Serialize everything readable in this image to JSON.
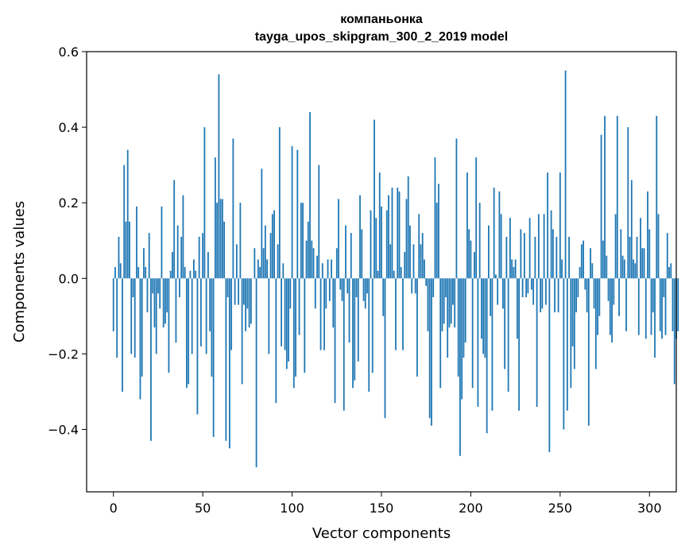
{
  "chart_data": {
    "type": "bar",
    "title": "компаньонка",
    "subtitle": "tayga_upos_skipgram_300_2_2019 model",
    "xlabel": "Vector components",
    "ylabel": "Components values",
    "xlim": [
      -15,
      315
    ],
    "ylim": [
      -0.565,
      0.6
    ],
    "xticks": [
      0,
      50,
      100,
      150,
      200,
      250,
      300
    ],
    "xtick_labels": [
      "0",
      "50",
      "100",
      "150",
      "200",
      "250",
      "300"
    ],
    "yticks": [
      -0.4,
      -0.2,
      0.0,
      0.2,
      0.4,
      0.6
    ],
    "ytick_labels": [
      "−0.4",
      "−0.2",
      "0.0",
      "0.2",
      "0.4",
      "0.6"
    ],
    "bar_color": "#1f77b4",
    "values": [
      -0.14,
      0.03,
      -0.21,
      0.11,
      0.04,
      -0.3,
      0.3,
      0.15,
      0.34,
      0.15,
      -0.2,
      -0.05,
      -0.21,
      0.19,
      0.03,
      -0.32,
      -0.26,
      0.08,
      0.03,
      -0.09,
      0.12,
      -0.43,
      -0.04,
      -0.13,
      -0.2,
      -0.04,
      -0.08,
      0.19,
      -0.13,
      -0.12,
      -0.09,
      -0.25,
      0.02,
      0.07,
      0.26,
      -0.17,
      0.14,
      -0.05,
      0.11,
      0.22,
      0.03,
      -0.29,
      -0.28,
      0.02,
      -0.2,
      0.05,
      0.02,
      -0.36,
      0.11,
      -0.18,
      0.12,
      0.4,
      -0.2,
      0.07,
      -0.14,
      -0.26,
      -0.42,
      0.32,
      0.2,
      0.54,
      0.21,
      0.21,
      0.15,
      -0.43,
      -0.05,
      -0.45,
      -0.19,
      0.37,
      -0.07,
      0.09,
      -0.07,
      0.2,
      -0.28,
      -0.07,
      -0.14,
      -0.08,
      -0.13,
      -0.12,
      0.0,
      0.08,
      -0.5,
      0.05,
      0.03,
      0.29,
      0.08,
      0.14,
      0.05,
      -0.2,
      0.12,
      0.17,
      0.18,
      -0.33,
      0.09,
      0.4,
      -0.18,
      0.04,
      -0.19,
      -0.24,
      -0.22,
      -0.08,
      0.35,
      -0.29,
      -0.26,
      0.34,
      -0.15,
      0.2,
      0.2,
      -0.25,
      0.1,
      0.15,
      0.44,
      0.1,
      0.08,
      -0.08,
      0.06,
      0.3,
      -0.19,
      0.04,
      -0.19,
      -0.08,
      0.05,
      -0.06,
      0.05,
      -0.13,
      -0.33,
      0.08,
      0.21,
      -0.03,
      -0.06,
      -0.35,
      0.14,
      -0.04,
      -0.17,
      0.12,
      -0.29,
      -0.27,
      -0.05,
      -0.22,
      0.22,
      0.13,
      -0.06,
      -0.08,
      -0.04,
      -0.3,
      0.18,
      -0.25,
      0.42,
      0.16,
      0.02,
      0.28,
      0.19,
      -0.1,
      -0.37,
      0.18,
      0.22,
      0.09,
      0.24,
      0.02,
      -0.19,
      0.24,
      0.23,
      0.03,
      -0.19,
      0.07,
      0.21,
      0.27,
      0.14,
      -0.04,
      0.09,
      -0.04,
      -0.26,
      0.17,
      0.09,
      0.12,
      0.05,
      -0.02,
      -0.14,
      -0.37,
      -0.39,
      -0.05,
      0.32,
      0.2,
      0.25,
      -0.29,
      -0.14,
      -0.12,
      -0.05,
      -0.21,
      -0.13,
      -0.12,
      -0.07,
      -0.13,
      0.37,
      -0.26,
      -0.47,
      -0.32,
      -0.21,
      -0.17,
      0.28,
      0.13,
      0.1,
      -0.29,
      0.07,
      0.32,
      -0.34,
      0.2,
      -0.16,
      -0.2,
      -0.21,
      -0.41,
      0.14,
      -0.1,
      -0.35,
      0.24,
      0.01,
      -0.07,
      0.23,
      0.17,
      -0.08,
      -0.24,
      0.11,
      -0.3,
      0.16,
      0.05,
      0.03,
      0.05,
      -0.16,
      -0.35,
      0.13,
      -0.05,
      0.12,
      -0.05,
      -0.04,
      0.16,
      -0.03,
      -0.07,
      0.11,
      -0.34,
      0.17,
      -0.09,
      -0.08,
      0.17,
      -0.07,
      0.28,
      -0.46,
      0.18,
      0.13,
      -0.09,
      0.11,
      -0.09,
      0.28,
      0.05,
      -0.4,
      0.55,
      -0.35,
      0.11,
      -0.29,
      -0.18,
      -0.24,
      -0.09,
      -0.05,
      0.03,
      0.09,
      0.1,
      -0.03,
      -0.09,
      -0.39,
      0.08,
      0.04,
      -0.08,
      -0.24,
      -0.15,
      -0.1,
      0.38,
      0.1,
      0.43,
      0.06,
      -0.06,
      -0.15,
      -0.17,
      -0.07,
      0.17,
      0.43,
      -0.1,
      0.13,
      0.06,
      0.05,
      -0.14,
      0.4,
      0.11,
      0.26,
      0.05,
      0.04,
      0.11,
      -0.15,
      0.16,
      0.08,
      0.08,
      -0.16,
      0.23,
      0.13,
      -0.15,
      -0.09,
      -0.21,
      0.43,
      0.17,
      -0.14,
      -0.16,
      -0.05,
      -0.15,
      0.12,
      0.03,
      0.04,
      -0.14,
      -0.28,
      -0.16,
      -0.14
    ]
  }
}
